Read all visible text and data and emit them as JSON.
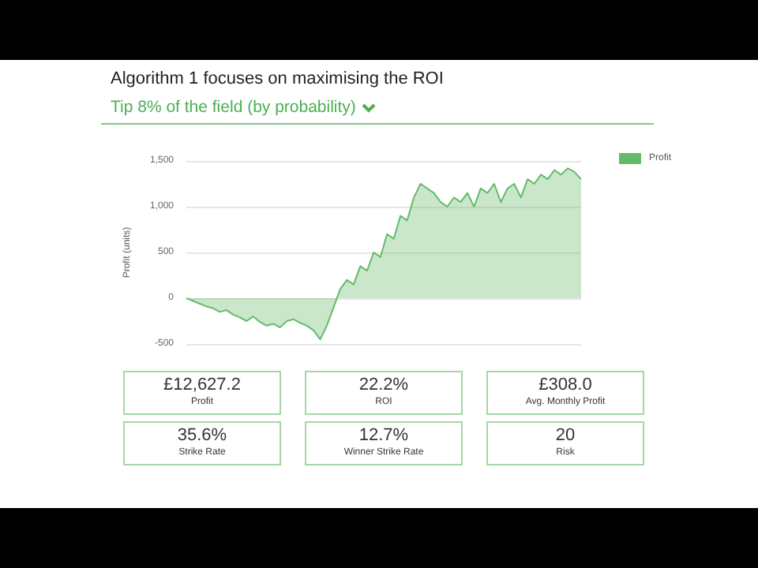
{
  "chart_data": [
    {
      "type": "area",
      "title": "Algorithm 1 focuses on maximising the ROI",
      "subtitle": "Tip 8% of the field (by probability)",
      "ylabel": "Profit (units)",
      "categories": [
        null,
        null,
        null,
        null,
        null,
        null,
        null,
        null,
        null,
        null,
        null,
        null,
        null,
        null,
        null,
        null,
        null,
        null,
        null,
        null,
        null,
        null,
        null,
        null,
        null,
        null,
        null,
        null,
        null,
        null,
        null,
        null,
        null,
        null,
        null,
        null,
        null,
        null,
        null,
        null,
        null,
        null,
        null,
        null,
        null,
        null,
        null,
        null,
        null,
        null,
        null,
        null,
        null,
        null,
        null,
        null,
        null,
        null,
        null,
        null
      ],
      "series": [
        {
          "name": "Profit",
          "color": "#66bb6a",
          "values": [
            0,
            -30,
            -60,
            -90,
            -110,
            -150,
            -130,
            -180,
            -210,
            -250,
            -200,
            -260,
            -300,
            -280,
            -320,
            -250,
            -230,
            -270,
            -300,
            -350,
            -450,
            -300,
            -100,
            100,
            200,
            150,
            350,
            300,
            500,
            450,
            700,
            650,
            900,
            850,
            1100,
            1250,
            1200,
            1150,
            1050,
            1000,
            1100,
            1050,
            1150,
            1000,
            1200,
            1150,
            1250,
            1050,
            1200,
            1250,
            1100,
            1300,
            1250,
            1350,
            1300,
            1400,
            1350,
            1420,
            1380,
            1300
          ]
        }
      ],
      "ylim": [
        -500,
        1500
      ],
      "yticks": [
        {
          "value": -500,
          "label": "-500"
        },
        {
          "value": 0,
          "label": "0"
        },
        {
          "value": 500,
          "label": "500"
        },
        {
          "value": 1000,
          "label": "1,000"
        },
        {
          "value": 1500,
          "label": "1,500"
        }
      ],
      "grid": "y",
      "legend": "top right",
      "marker": "none"
    },
    {
      "type": "other",
      "annotations": [
        "£12,627.2",
        "Profit",
        "22.2%",
        "ROI",
        "£308.0",
        "Avg. Monthly Profit",
        "35.6%",
        "Strike Rate",
        "12.7%",
        "Winner Strike Rate",
        "20",
        "Risk"
      ]
    }
  ]
}
